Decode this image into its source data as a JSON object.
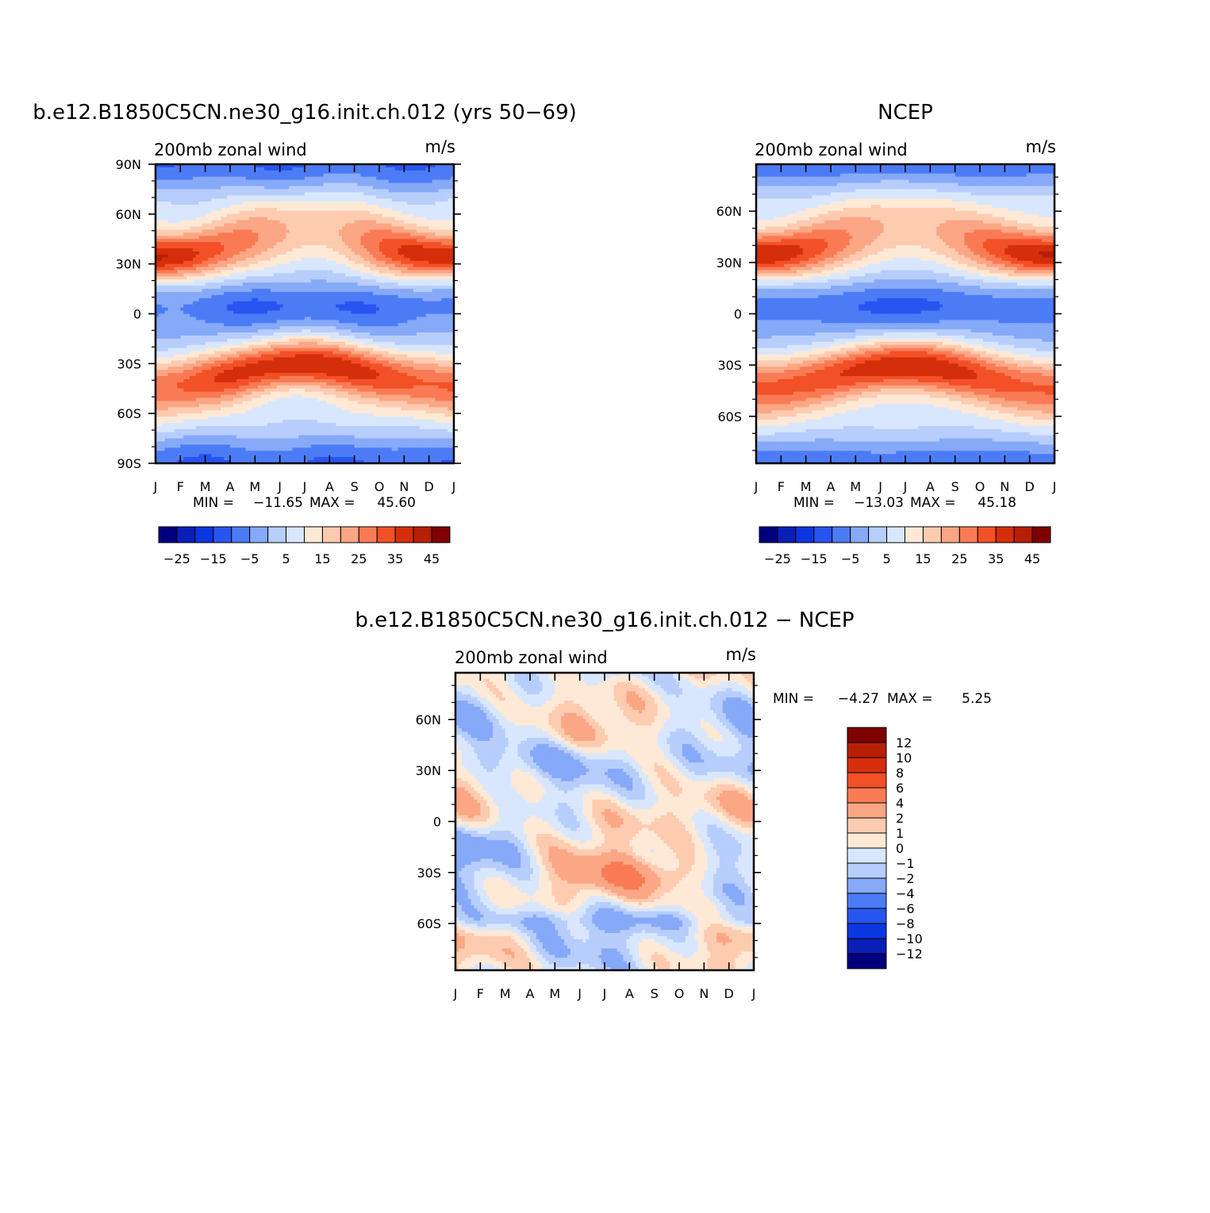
{
  "chart_data": [
    {
      "type": "heatmap",
      "id": "model",
      "title": "b.e12.B1850C5CN.ne30_g16.init.ch.012 (yrs 50-69)",
      "left_label": "200mb zonal wind",
      "right_label": "m/s",
      "x_ticks": [
        "J",
        "F",
        "M",
        "A",
        "M",
        "J",
        "J",
        "A",
        "S",
        "O",
        "N",
        "D",
        "J"
      ],
      "y_ticks": [
        "90N",
        "60N",
        "30N",
        "0",
        "30S",
        "60S",
        "90S"
      ],
      "ylim": [
        -90,
        90
      ],
      "stats": {
        "min_label": "MIN =",
        "min": "-11.65",
        "max_label": "MAX =",
        "max": "45.60"
      },
      "levels": [
        -25,
        -20,
        -15,
        -10,
        -5,
        0,
        5,
        10,
        15,
        20,
        25,
        30,
        35,
        40,
        45
      ],
      "colorbar_labels": [
        "-25",
        "-15",
        "-5",
        "5",
        "15",
        "25",
        "35",
        "45"
      ],
      "colors": [
        "#00007f",
        "#0a1eb8",
        "#0c37e0",
        "#2855f0",
        "#4c7cf5",
        "#86a9f8",
        "#b7cdfb",
        "#d8e7fd",
        "#fee9d6",
        "#fdcbb0",
        "#fba684",
        "#f97b55",
        "#f25026",
        "#d52e0b",
        "#b71f04",
        "#7f0000"
      ]
    },
    {
      "type": "heatmap",
      "id": "obs",
      "title": "NCEP",
      "left_label": "200mb zonal wind",
      "right_label": "m/s",
      "x_ticks": [
        "J",
        "F",
        "M",
        "A",
        "M",
        "J",
        "J",
        "A",
        "S",
        "O",
        "N",
        "D",
        "J"
      ],
      "y_ticks": [
        "60N",
        "30N",
        "0",
        "30S",
        "60S"
      ],
      "ylim": [
        -87.5,
        87.5
      ],
      "stats": {
        "min_label": "MIN =",
        "min": "-13.03",
        "max_label": "MAX =",
        "max": "45.18"
      },
      "levels": [
        -25,
        -20,
        -15,
        -10,
        -5,
        0,
        5,
        10,
        15,
        20,
        25,
        30,
        35,
        40,
        45
      ],
      "colorbar_labels": [
        "-25",
        "-15",
        "-5",
        "5",
        "15",
        "25",
        "35",
        "45"
      ],
      "colors": [
        "#00007f",
        "#0a1eb8",
        "#0c37e0",
        "#2855f0",
        "#4c7cf5",
        "#86a9f8",
        "#b7cdfb",
        "#d8e7fd",
        "#fee9d6",
        "#fdcbb0",
        "#fba684",
        "#f97b55",
        "#f25026",
        "#d52e0b",
        "#b71f04",
        "#7f0000"
      ]
    },
    {
      "type": "heatmap",
      "id": "diff",
      "title": "b.e12.B1850C5CN.ne30_g16.init.ch.012 - NCEP",
      "left_label": "200mb zonal wind",
      "right_label": "m/s",
      "x_ticks": [
        "J",
        "F",
        "M",
        "A",
        "M",
        "J",
        "J",
        "A",
        "S",
        "O",
        "N",
        "D",
        "J"
      ],
      "y_ticks": [
        "60N",
        "30N",
        "0",
        "30S",
        "60S"
      ],
      "ylim": [
        -87.5,
        87.5
      ],
      "stats": {
        "min_label": "MIN =",
        "min": "-4.27",
        "max_label": "MAX =",
        "max": "5.25"
      },
      "levels": [
        -12,
        -10,
        -8,
        -6,
        -4,
        -2,
        -1,
        0,
        1,
        2,
        4,
        6,
        8,
        10,
        12
      ],
      "colorbar_labels": [
        "-12",
        "-10",
        "-8",
        "-6",
        "-4",
        "-2",
        "-1",
        "0",
        "1",
        "2",
        "4",
        "6",
        "8",
        "10",
        "12"
      ],
      "colors": [
        "#00007f",
        "#0a1eb8",
        "#0c37e0",
        "#2855f0",
        "#4c7cf5",
        "#86a9f8",
        "#b7cdfb",
        "#d8e7fd",
        "#fee9d6",
        "#fdcbb0",
        "#fba684",
        "#f97b55",
        "#f25026",
        "#d52e0b",
        "#b71f04",
        "#7f0000"
      ]
    }
  ]
}
